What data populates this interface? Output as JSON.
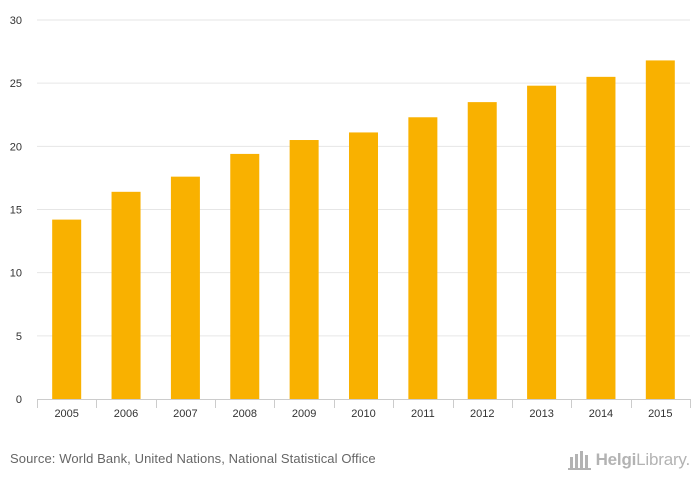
{
  "chart_data": {
    "type": "bar",
    "categories": [
      "2005",
      "2006",
      "2007",
      "2008",
      "2009",
      "2010",
      "2011",
      "2012",
      "2013",
      "2014",
      "2015"
    ],
    "values": [
      14.2,
      16.4,
      17.6,
      19.4,
      20.5,
      21.1,
      22.3,
      23.5,
      24.8,
      25.5,
      26.8
    ],
    "y_ticks": [
      "0",
      "5",
      "10",
      "15",
      "20",
      "25",
      "30"
    ],
    "ylim": [
      0,
      30
    ],
    "title": "",
    "xlabel": "",
    "ylabel": "",
    "grid": true,
    "bar_color": "#f9b100",
    "grid_color": "#e6e6e6",
    "axis_color": "#cccccc",
    "label_color": "#333333"
  },
  "footer": {
    "source": "Source: World Bank, United Nations, National Statistical Office",
    "brand_prefix": "Helgi",
    "brand_suffix": "Library",
    "brand_dot": "."
  }
}
